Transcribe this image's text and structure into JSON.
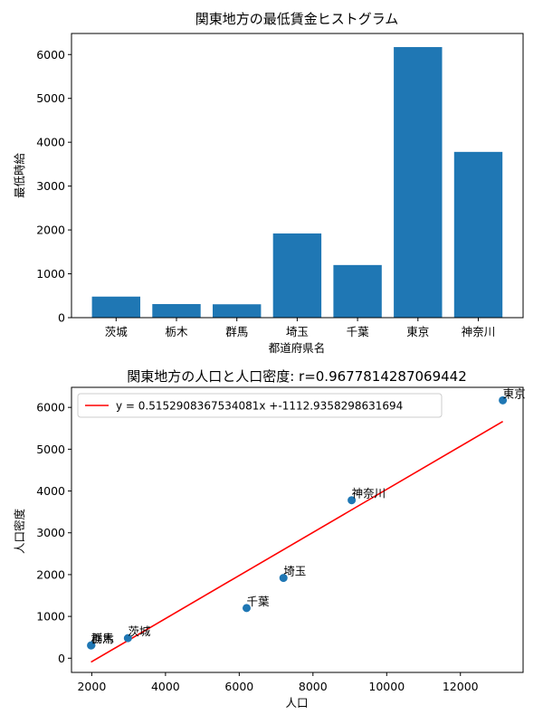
{
  "chart_data": [
    {
      "type": "bar",
      "title": "関東地方の最低賃金ヒストグラム",
      "xlabel": "都道府県名",
      "ylabel": "最低時給",
      "categories": [
        "茨城",
        "栃木",
        "群馬",
        "埼玉",
        "千葉",
        "東京",
        "神奈川"
      ],
      "values": [
        480,
        310,
        305,
        1920,
        1200,
        6170,
        3780
      ],
      "ylim": [
        0,
        6480
      ],
      "yticks": [
        "0",
        "1000",
        "2000",
        "3000",
        "4000",
        "5000",
        "6000"
      ],
      "bar_color": "#1f77b4",
      "grid": false
    },
    {
      "type": "scatter",
      "title": "関東地方の人口と人口密度: r=0.9677814287069442",
      "xlabel": "人口",
      "ylabel": "人口密度",
      "points": [
        {
          "label": "茨城",
          "x": 2980,
          "y": 480
        },
        {
          "label": "栃木",
          "x": 1990,
          "y": 310
        },
        {
          "label": "群馬",
          "x": 1980,
          "y": 305
        },
        {
          "label": "埼玉",
          "x": 7200,
          "y": 1920
        },
        {
          "label": "千葉",
          "x": 6200,
          "y": 1200
        },
        {
          "label": "東京",
          "x": 13150,
          "y": 6170
        },
        {
          "label": "神奈川",
          "x": 9050,
          "y": 3780
        }
      ],
      "fit_line": {
        "slope": 0.5152908367534081,
        "intercept": -1112.9358298631694
      },
      "legend": {
        "entry": "y = 0.5152908367534081x +-1112.9358298631694",
        "placement": "top-left"
      },
      "xlim": [
        1450,
        13700
      ],
      "ylim": [
        -340,
        6480
      ],
      "xticks": [
        "2000",
        "4000",
        "6000",
        "8000",
        "10000",
        "12000"
      ],
      "yticks": [
        "0",
        "1000",
        "2000",
        "3000",
        "4000",
        "5000",
        "6000"
      ],
      "point_color": "#1f77b4",
      "line_color": "#ff0000",
      "grid": false
    }
  ]
}
